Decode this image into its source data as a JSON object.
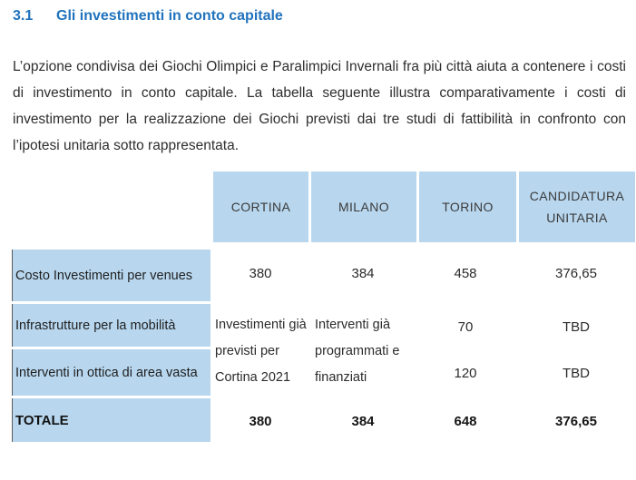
{
  "heading": {
    "number": "3.1",
    "title": "Gli investimenti in conto capitale"
  },
  "intro": {
    "lines": [
      "L’opzione condivisa dei Giochi Olimpici e Paralimpici Invernali fra più città aiuta a contenere i costi",
      "di investimento in conto capitale. La tabella seguente illustra comparativamente i costi di",
      "investimento per la realizzazione dei Giochi previsti dai tre studi di fattibilità in confronto con",
      "l’ipotesi unitaria sotto rappresentata."
    ]
  },
  "table": {
    "header": {
      "cortina": "CORTINA",
      "milano": "MILANO",
      "torino": "TORINO",
      "candidatura": "CANDIDATURA UNITARIA"
    },
    "row_venues": {
      "label": "Costo Investimenti per venues",
      "cortina": "380",
      "milano": "384",
      "torino": "458",
      "candidatura": "376,65"
    },
    "row_mobility": {
      "label": "Infrastrutture per la mobilità",
      "torino": "70",
      "candidatura": "TBD"
    },
    "row_area": {
      "label": "Interventi in ottica di area vasta",
      "torino": "120",
      "candidatura": "TBD"
    },
    "row_total": {
      "label": "TOTALE",
      "cortina": "380",
      "milano": "384",
      "torino": "648",
      "candidatura": "376,65"
    },
    "merged": {
      "cortina": "Investimenti già previsti per Cortina 2021",
      "milano": "Interventi già programmati e finanziati"
    }
  },
  "colors": {
    "cell_blue": "#b8d7ef",
    "heading_blue": "#2173bd",
    "body_text": "#2e2e2e"
  }
}
